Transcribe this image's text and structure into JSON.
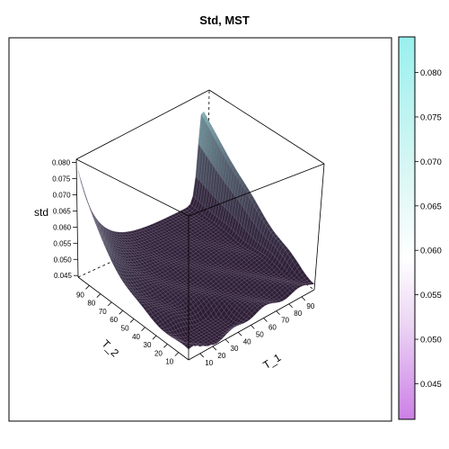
{
  "chart_data": {
    "type": "surface3d",
    "title": "Std, MST",
    "xlabel": "T_1",
    "ylabel": "T_2",
    "zlabel": "std",
    "x_ticks": [
      10,
      20,
      30,
      40,
      50,
      60,
      70,
      80,
      90
    ],
    "y_ticks": [
      10,
      20,
      30,
      40,
      50,
      60,
      70,
      80,
      90
    ],
    "z_ticks": [
      0.045,
      0.05,
      0.055,
      0.06,
      0.065,
      0.07,
      0.075,
      0.08
    ],
    "z_tick_labels": [
      "0.045",
      "0.050",
      "0.055",
      "0.060",
      "0.065",
      "0.070",
      "0.075",
      "0.080"
    ],
    "xlim": [
      1,
      100
    ],
    "ylim": [
      1,
      100
    ],
    "zlim": [
      0.0445,
      0.081
    ],
    "colorbar": {
      "range": [
        0.041,
        0.084
      ],
      "ticks": [
        0.045,
        0.05,
        0.055,
        0.06,
        0.065,
        0.07,
        0.075,
        0.08
      ],
      "tick_labels": [
        "0.045",
        "0.050",
        "0.055",
        "0.060",
        "0.065",
        "0.070",
        "0.075",
        "0.080"
      ],
      "colors": [
        "#cc80e6",
        "#f0e6f5",
        "#ffffff",
        "#c8f5f0",
        "#99f0ee"
      ]
    },
    "surface": {
      "description_grid_values": "std as function of T_1 and T_2",
      "corner_high_T2": 0.0715,
      "ridge_at_T1_high": 0.0695,
      "valley_min": 0.0445,
      "plateau_level": 0.0475
    }
  }
}
